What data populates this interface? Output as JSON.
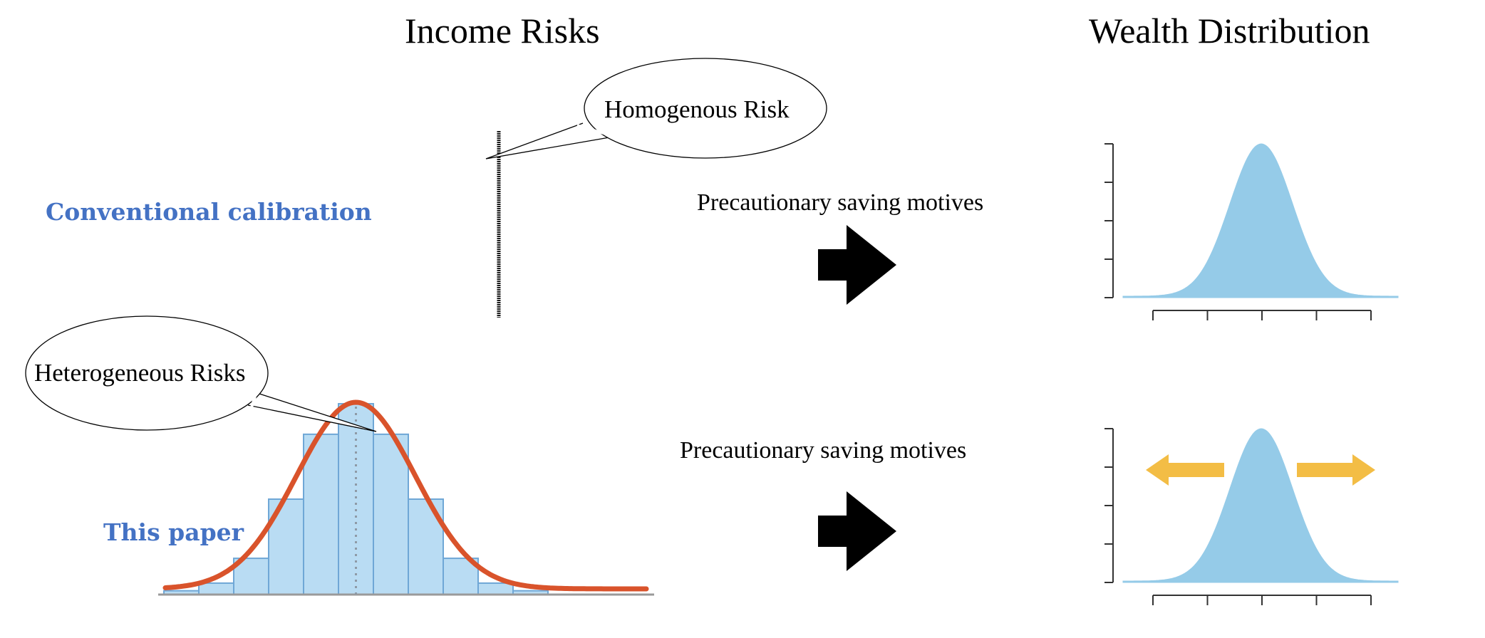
{
  "headings": {
    "income": "Income Risks",
    "wealth": "Wealth Distribution"
  },
  "rows": {
    "top": {
      "label": "Conventional calibration",
      "bubble": "Homogenous Risk",
      "mechanism": "Precautionary saving motives"
    },
    "bottom": {
      "label": "This paper",
      "bubble": "Heterogeneous Risks",
      "mechanism": "Precautionary saving motives"
    }
  },
  "colors": {
    "label_blue": "#4472c4",
    "histogram_fill": "#b9dcf3",
    "histogram_edge": "#6fa7d6",
    "curve": "#d9532b",
    "wealth_fill": "#95cbe8",
    "spread_arrows": "#f3bd45",
    "arrow": "#000000"
  },
  "icons": {
    "transition_arrow": "arrow-right-icon",
    "spread_left": "arrow-left-icon",
    "spread_right": "arrow-right-icon"
  },
  "income_histogram": {
    "relative_heights": [
      0.02,
      0.06,
      0.19,
      0.5,
      0.84,
      1.0,
      0.84,
      0.5,
      0.19,
      0.06,
      0.02
    ]
  }
}
